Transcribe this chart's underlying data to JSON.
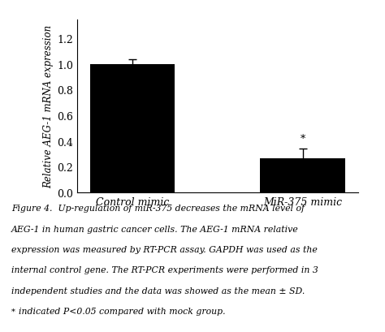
{
  "categories": [
    "Control mimic",
    "MiR-375 mimic"
  ],
  "values": [
    1.0,
    0.265
  ],
  "errors": [
    0.04,
    0.075
  ],
  "bar_color": "#000000",
  "bar_width": 0.5,
  "ylim": [
    0,
    1.35
  ],
  "yticks": [
    0.0,
    0.2,
    0.4,
    0.6,
    0.8,
    1.0,
    1.2
  ],
  "ylabel": "Relative AEG-1 mRNA expression",
  "background_color": "#ffffff",
  "asterisk_text": "*",
  "caption_lines": [
    "Figure 4.  Up-regulation of miR-375 decreases the mRNA level of",
    "AEG-1 in human gastric cancer cells. The AEG-1 mRNA relative",
    "expression was measured by RT-PCR assay. GAPDH was used as the",
    "internal control gene. The RT-PCR experiments were performed in 3",
    "independent studies and the data was showed as the mean ± SD.",
    "indicated P<0.05 compared with mock group."
  ]
}
